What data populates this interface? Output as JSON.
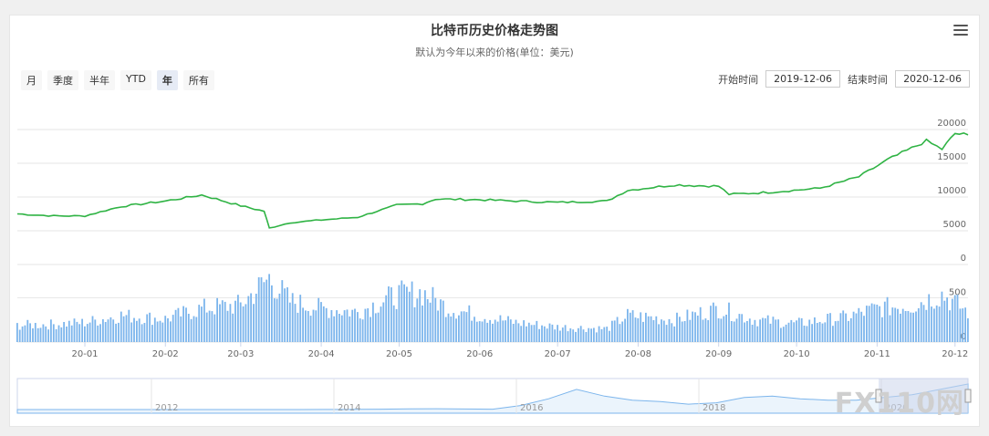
{
  "header": {
    "title": "比特币历史价格走势图",
    "subtitle": "默认为今年以来的价格(单位：美元)"
  },
  "range_buttons": [
    {
      "label": "月",
      "selected": false
    },
    {
      "label": "季度",
      "selected": false
    },
    {
      "label": "半年",
      "selected": false
    },
    {
      "label": "YTD",
      "selected": false
    },
    {
      "label": "年",
      "selected": true
    },
    {
      "label": "所有",
      "selected": false
    }
  ],
  "dates": {
    "start_label": "开始时间",
    "start_value": "2019-12-06",
    "end_label": "结束时间",
    "end_value": "2020-12-06"
  },
  "watermark": "FX110网",
  "colors": {
    "price_line": "#2fb344",
    "volume_bar": "#7cb5ec",
    "navigator_mask": "#ccd6eb",
    "grid": "#e6e6e6"
  },
  "chart_data": {
    "type": "line",
    "price": {
      "y_ticks": [
        0,
        5000,
        10000,
        15000,
        20000
      ],
      "ylim": [
        0,
        20000
      ],
      "points": [
        [
          "2019-12-06",
          7500
        ],
        [
          "2019-12-20",
          7200
        ],
        [
          "2020-01-01",
          7200
        ],
        [
          "2020-01-15",
          8600
        ],
        [
          "2020-02-01",
          9400
        ],
        [
          "2020-02-15",
          10300
        ],
        [
          "2020-03-01",
          8700
        ],
        [
          "2020-03-10",
          7900
        ],
        [
          "2020-03-12",
          5400
        ],
        [
          "2020-03-20",
          6200
        ],
        [
          "2020-04-01",
          6600
        ],
        [
          "2020-04-15",
          7000
        ],
        [
          "2020-04-30",
          8800
        ],
        [
          "2020-05-10",
          9000
        ],
        [
          "2020-05-15",
          9700
        ],
        [
          "2020-06-01",
          9600
        ],
        [
          "2020-06-15",
          9400
        ],
        [
          "2020-07-01",
          9200
        ],
        [
          "2020-07-20",
          9400
        ],
        [
          "2020-07-28",
          11000
        ],
        [
          "2020-08-15",
          11800
        ],
        [
          "2020-09-01",
          11600
        ],
        [
          "2020-09-05",
          10400
        ],
        [
          "2020-09-20",
          10700
        ],
        [
          "2020-10-10",
          11300
        ],
        [
          "2020-10-25",
          13000
        ],
        [
          "2020-11-05",
          15500
        ],
        [
          "2020-11-20",
          18300
        ],
        [
          "2020-11-26",
          17100
        ],
        [
          "2020-12-01",
          19400
        ],
        [
          "2020-12-06",
          19200
        ]
      ]
    },
    "volume": {
      "y_ticks": [
        0,
        500
      ],
      "ylim": [
        0,
        700
      ],
      "points": [
        [
          "2019-12-06",
          190
        ],
        [
          "2019-12-20",
          200
        ],
        [
          "2020-01-01",
          220
        ],
        [
          "2020-01-15",
          300
        ],
        [
          "2020-02-01",
          260
        ],
        [
          "2020-02-15",
          380
        ],
        [
          "2020-03-01",
          420
        ],
        [
          "2020-03-12",
          720
        ],
        [
          "2020-03-20",
          460
        ],
        [
          "2020-04-01",
          380
        ],
        [
          "2020-04-15",
          340
        ],
        [
          "2020-04-30",
          530
        ],
        [
          "2020-05-10",
          560
        ],
        [
          "2020-05-20",
          380
        ],
        [
          "2020-06-01",
          300
        ],
        [
          "2020-06-15",
          220
        ],
        [
          "2020-07-01",
          170
        ],
        [
          "2020-07-20",
          150
        ],
        [
          "2020-07-28",
          300
        ],
        [
          "2020-08-15",
          250
        ],
        [
          "2020-09-01",
          380
        ],
        [
          "2020-09-15",
          250
        ],
        [
          "2020-10-01",
          210
        ],
        [
          "2020-10-20",
          280
        ],
        [
          "2020-11-01",
          380
        ],
        [
          "2020-11-15",
          420
        ],
        [
          "2020-11-26",
          540
        ],
        [
          "2020-12-06",
          340
        ]
      ]
    },
    "x_ticks": [
      "20-01",
      "20-02",
      "20-03",
      "20-04",
      "20-05",
      "20-06",
      "20-07",
      "20-08",
      "20-09",
      "20-10",
      "20-11",
      "20-12"
    ],
    "navigator": {
      "labels": [
        "2012",
        "2014",
        "2016",
        "2018",
        "2020"
      ],
      "series": [
        0,
        0,
        0,
        0,
        0,
        0,
        0,
        0,
        0,
        0,
        10,
        50,
        150,
        300,
        500,
        600,
        400,
        300,
        3000,
        8000,
        15000,
        10000,
        7000,
        6000,
        4000,
        5000,
        9000,
        10000,
        8000,
        7000,
        7000,
        9000,
        11000,
        15000,
        19000
      ]
    }
  }
}
